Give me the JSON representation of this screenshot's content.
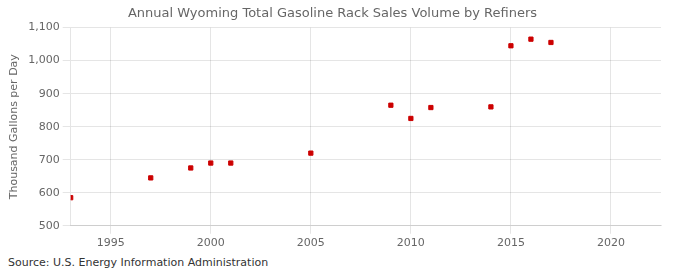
{
  "chart_data": {
    "type": "scatter",
    "title": "Annual Wyoming Total Gasoline Rack Sales Volume by Refiners",
    "ylabel": "Thousand Gallons per Day",
    "source": "Source: U.S. Energy Information Administration",
    "x": [
      1993,
      1997,
      1999,
      2000,
      2001,
      2005,
      2009,
      2010,
      2011,
      2014,
      2015,
      2016,
      2017
    ],
    "values": [
      585,
      645,
      675,
      690,
      690,
      720,
      865,
      825,
      858,
      860,
      1045,
      1065,
      1055
    ],
    "color": "#cc0000",
    "marker": "square",
    "xlim": [
      1993.0,
      2022.5
    ],
    "xticks": [
      1995,
      2000,
      2005,
      2010,
      2015,
      2020
    ],
    "ylim": [
      500,
      1100
    ],
    "yticks": [
      500,
      600,
      700,
      800,
      900,
      {
        "value": 1000,
        "label": "1,000"
      },
      {
        "value": 1100,
        "label": "1,100"
      }
    ],
    "grid": true
  }
}
